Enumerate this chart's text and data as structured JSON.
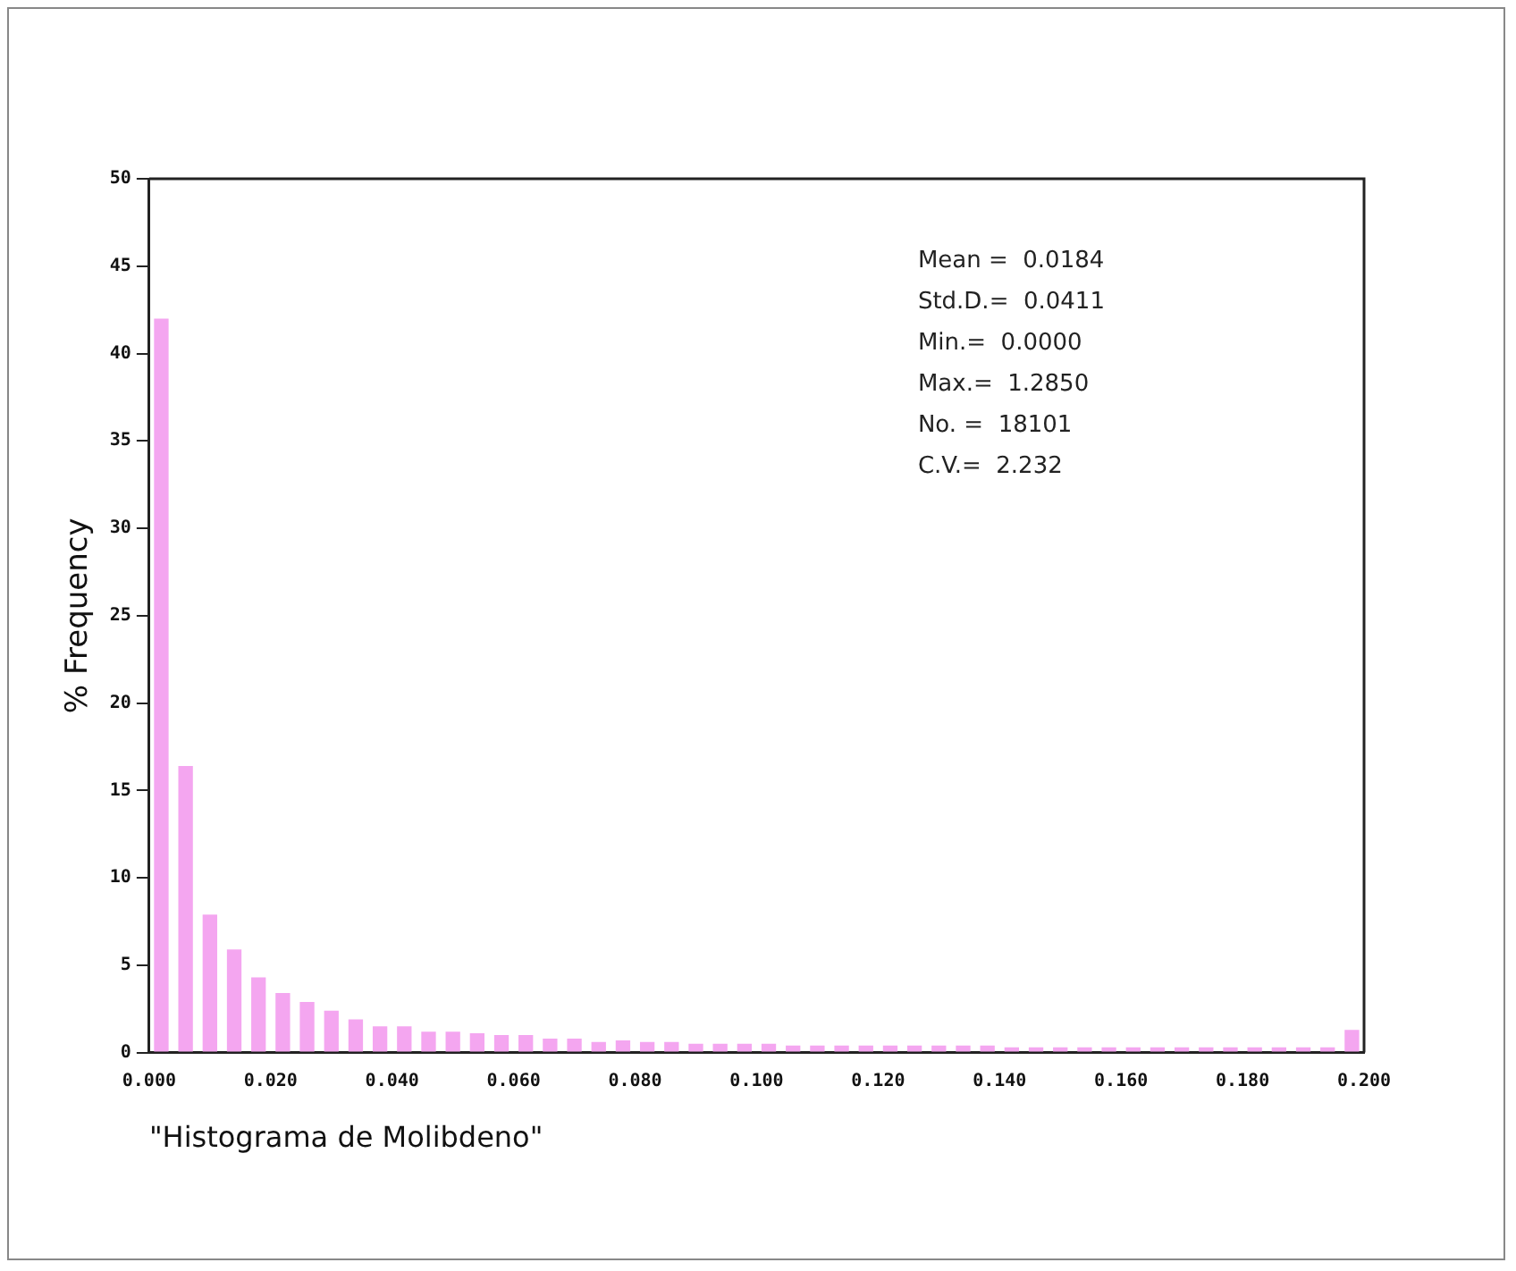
{
  "chart_data": {
    "type": "histogram",
    "xlabel": "\"Histograma de Molibdeno\"",
    "ylabel": "% Frequency",
    "color": "#f4a6f0",
    "bins": [
      0,
      0.004,
      0.008,
      0.012,
      0.016,
      0.02,
      0.024,
      0.028,
      0.032,
      0.036,
      0.04,
      0.044,
      0.048,
      0.052,
      0.056,
      0.06,
      0.064,
      0.068,
      0.072,
      0.076,
      0.08,
      0.084,
      0.088,
      0.092,
      0.096,
      0.1,
      0.104,
      0.108,
      0.112,
      0.116,
      0.12,
      0.124,
      0.128,
      0.132,
      0.136,
      0.14,
      0.144,
      0.148,
      0.152,
      0.156,
      0.16,
      0.164,
      0.168,
      0.172,
      0.176,
      0.18,
      0.184,
      0.188,
      0.192,
      0.196,
      0.2
    ],
    "values": [
      42,
      16.4,
      7.9,
      5.9,
      4.3,
      3.4,
      2.9,
      2.4,
      1.9,
      1.5,
      1.5,
      1.2,
      1.2,
      1.1,
      1.0,
      1.0,
      0.8,
      0.8,
      0.6,
      0.7,
      0.6,
      0.6,
      0.5,
      0.5,
      0.5,
      0.5,
      0.4,
      0.4,
      0.4,
      0.4,
      0.4,
      0.4,
      0.4,
      0.4,
      0.4,
      0.3,
      0.3,
      0.3,
      0.3,
      0.3,
      0.3,
      0.3,
      0.3,
      0.3,
      0.3,
      0.3,
      0.3,
      0.3,
      0.3,
      1.3
    ],
    "xlim": [
      0,
      0.2
    ],
    "xticks": [
      {
        "value": 0,
        "label": "0.000"
      },
      {
        "value": 0.02,
        "label": "0.020"
      },
      {
        "value": 0.04,
        "label": "0.040"
      },
      {
        "value": 0.06,
        "label": "0.060"
      },
      {
        "value": 0.08,
        "label": "0.080"
      },
      {
        "value": 0.1,
        "label": "0.100"
      },
      {
        "value": 0.12,
        "label": "0.120"
      },
      {
        "value": 0.14,
        "label": "0.140"
      },
      {
        "value": 0.16,
        "label": "0.160"
      },
      {
        "value": 0.18,
        "label": "0.180"
      },
      {
        "value": 0.2,
        "label": "0.200"
      }
    ],
    "ylim": [
      0,
      50
    ],
    "yticks": [
      0,
      5,
      10,
      15,
      20,
      25,
      30,
      35,
      40,
      45,
      50
    ],
    "annotations": [
      "Mean =  0.0184",
      "Std.D.=  0.0411",
      "Min.=  0.0000",
      "Max.=  1.2850",
      "No. =  18101",
      "C.V.=  2.232"
    ]
  }
}
